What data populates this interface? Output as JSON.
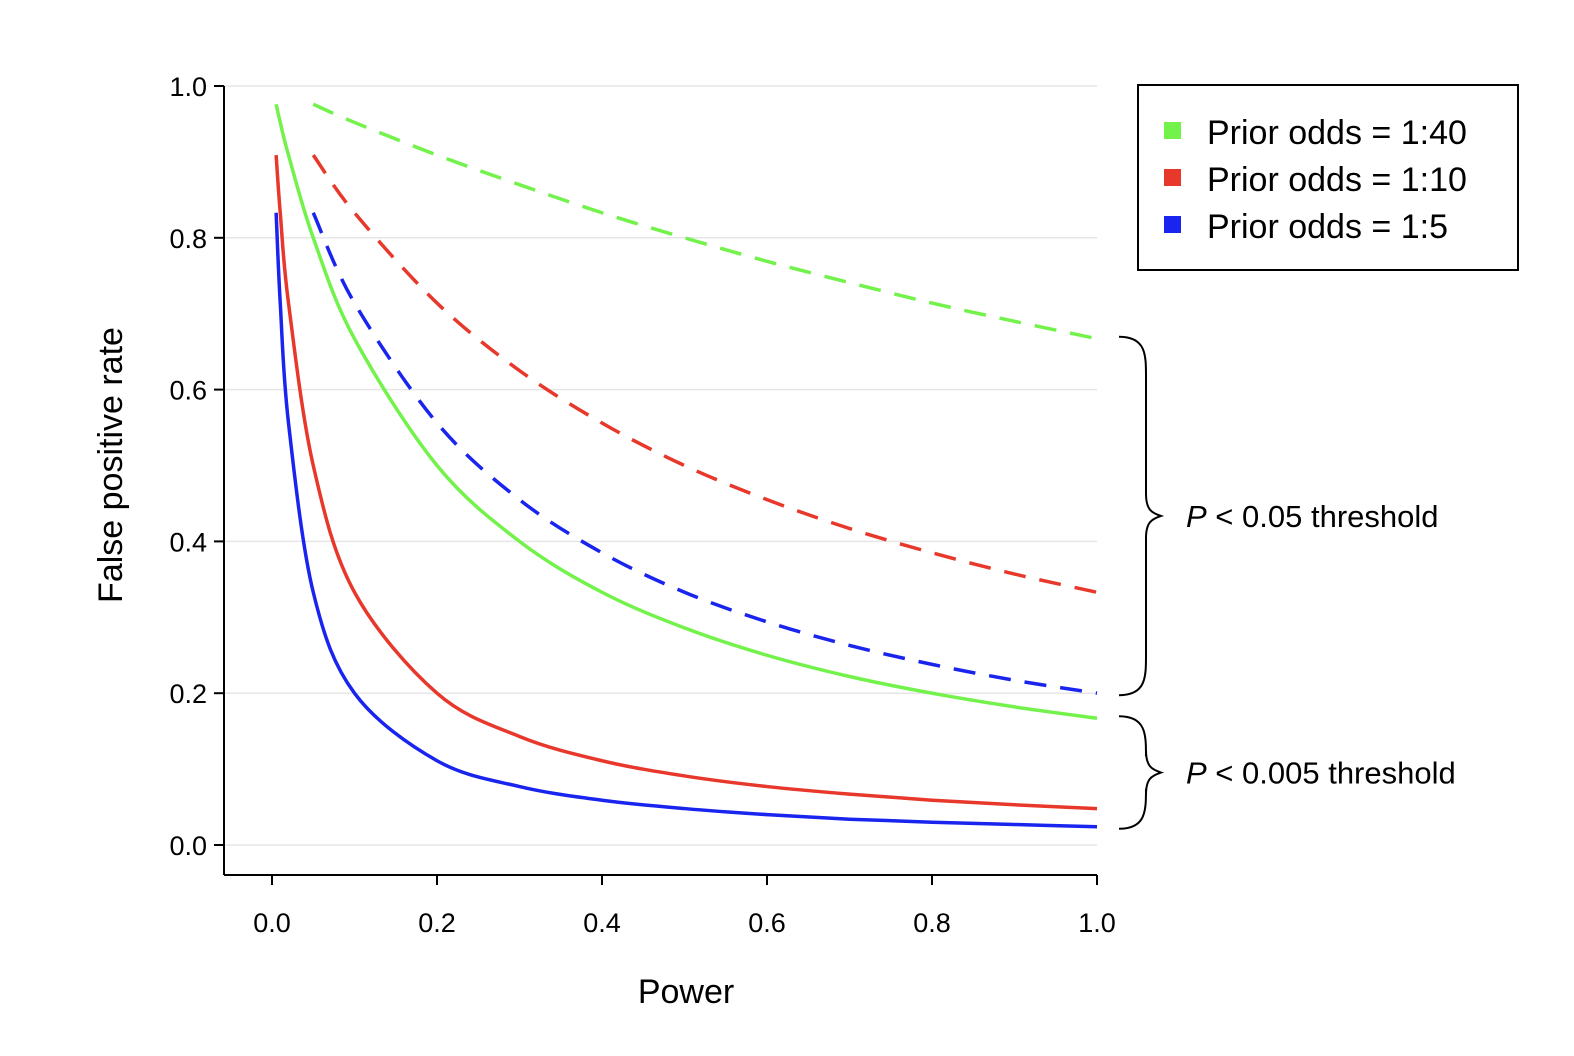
{
  "chart_data": {
    "type": "line",
    "xlabel": "Power",
    "ylabel": "False positive rate",
    "xlim": [
      -0.06,
      1.0
    ],
    "ylim": [
      -0.04,
      1.0
    ],
    "x_ticks": [
      "0.0",
      "0.2",
      "0.4",
      "0.6",
      "0.8",
      "1.0"
    ],
    "y_ticks": [
      "0.0",
      "0.2",
      "0.4",
      "0.6",
      "0.8",
      "1.0"
    ],
    "grid": "horizontal",
    "legend_position": "top-right",
    "legend": [
      "Prior odds = 1:40",
      "Prior odds = 1:10",
      "Prior odds = 1:5"
    ],
    "colors": {
      "green": "#72f24a",
      "red": "#e8382b",
      "blue": "#1a24ef"
    },
    "series": [
      {
        "name": "Prior odds = 1:40",
        "color": "#72f24a",
        "dash": "dashed",
        "threshold": 0.05,
        "prior_odds": 40,
        "x": [
          0.05,
          0.1,
          0.2,
          0.3,
          0.4,
          0.5,
          0.6,
          0.7,
          0.8,
          0.9,
          1.0
        ],
        "y": [
          0.976,
          0.952,
          0.909,
          0.87,
          0.833,
          0.8,
          0.769,
          0.741,
          0.714,
          0.69,
          0.667
        ]
      },
      {
        "name": "Prior odds = 1:10",
        "color": "#e8382b",
        "dash": "dashed",
        "threshold": 0.05,
        "prior_odds": 10,
        "x": [
          0.05,
          0.1,
          0.2,
          0.3,
          0.4,
          0.5,
          0.6,
          0.7,
          0.8,
          0.9,
          1.0
        ],
        "y": [
          0.909,
          0.833,
          0.714,
          0.625,
          0.556,
          0.5,
          0.455,
          0.417,
          0.385,
          0.357,
          0.333
        ]
      },
      {
        "name": "Prior odds = 1:5",
        "color": "#1a24ef",
        "dash": "dashed",
        "threshold": 0.05,
        "prior_odds": 5,
        "x": [
          0.05,
          0.1,
          0.2,
          0.3,
          0.4,
          0.5,
          0.6,
          0.7,
          0.8,
          0.9,
          1.0
        ],
        "y": [
          0.833,
          0.714,
          0.556,
          0.455,
          0.385,
          0.333,
          0.294,
          0.263,
          0.238,
          0.217,
          0.2
        ]
      },
      {
        "name": "Prior odds = 1:40",
        "color": "#72f24a",
        "dash": "solid",
        "threshold": 0.005,
        "prior_odds": 40,
        "x": [
          0.005,
          0.01,
          0.02,
          0.05,
          0.1,
          0.2,
          0.3,
          0.4,
          0.5,
          0.6,
          0.7,
          0.8,
          0.9,
          1.0
        ],
        "y": [
          0.976,
          0.952,
          0.909,
          0.8,
          0.667,
          0.5,
          0.4,
          0.333,
          0.286,
          0.25,
          0.222,
          0.2,
          0.182,
          0.167
        ]
      },
      {
        "name": "Prior odds = 1:10",
        "color": "#e8382b",
        "dash": "solid",
        "threshold": 0.005,
        "prior_odds": 10,
        "x": [
          0.005,
          0.01,
          0.02,
          0.05,
          0.1,
          0.2,
          0.3,
          0.4,
          0.5,
          0.6,
          0.7,
          0.8,
          0.9,
          1.0
        ],
        "y": [
          0.909,
          0.833,
          0.714,
          0.5,
          0.333,
          0.2,
          0.143,
          0.111,
          0.091,
          0.077,
          0.067,
          0.059,
          0.053,
          0.048
        ]
      },
      {
        "name": "Prior odds = 1:5",
        "color": "#1a24ef",
        "dash": "solid",
        "threshold": 0.005,
        "prior_odds": 5,
        "x": [
          0.005,
          0.01,
          0.02,
          0.05,
          0.1,
          0.2,
          0.3,
          0.4,
          0.5,
          0.6,
          0.7,
          0.8,
          0.9,
          1.0
        ],
        "y": [
          0.833,
          0.714,
          0.556,
          0.333,
          0.2,
          0.111,
          0.077,
          0.059,
          0.048,
          0.04,
          0.034,
          0.03,
          0.027,
          0.024
        ]
      }
    ],
    "annotations": [
      {
        "italic": "P",
        "text": " < 0.05 threshold",
        "y_from": 0.2,
        "y_to": 0.667
      },
      {
        "italic": "P",
        "text": " < 0.005 threshold",
        "y_from": 0.024,
        "y_to": 0.167
      }
    ]
  }
}
